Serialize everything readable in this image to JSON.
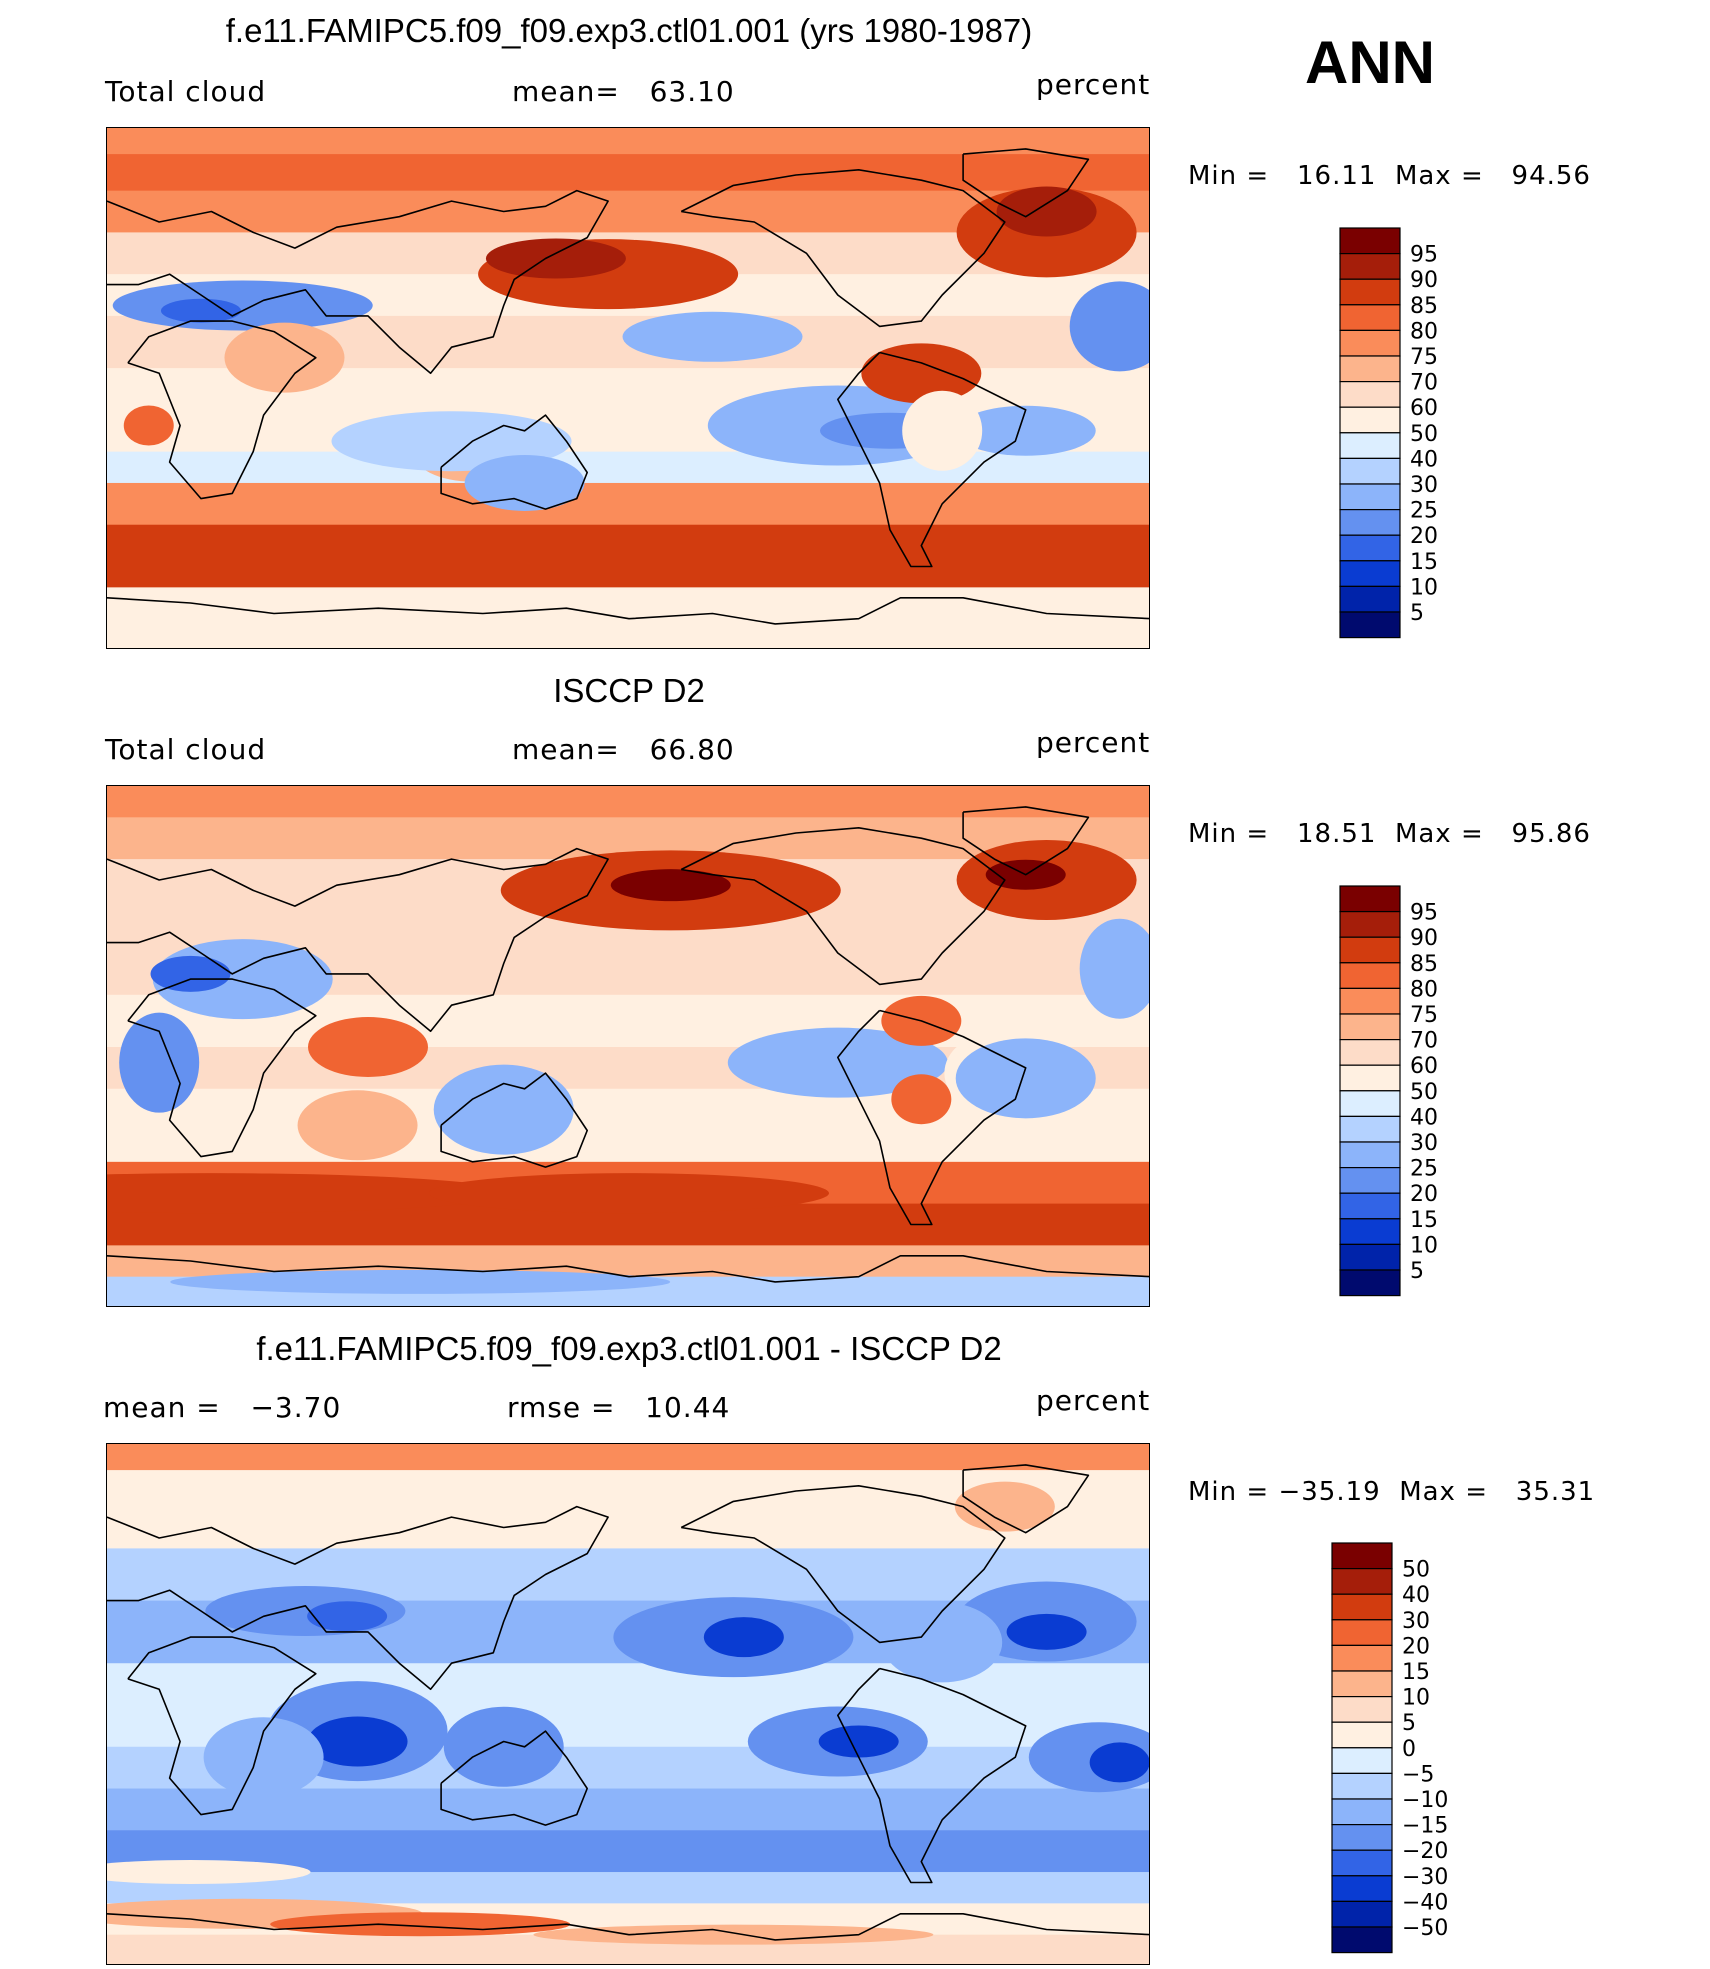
{
  "season_label": "ANN",
  "panels": [
    {
      "title": "f.e11.FAMIPC5.f09_f09.exp3.ctl01.001 (yrs 1980-1987)",
      "left_label": "Total cloud",
      "mean_text": "mean=   63.10",
      "units": "percent",
      "minmax": "Min =   16.11  Max =   94.56",
      "colorbar": {
        "labels": [
          "95",
          "90",
          "85",
          "80",
          "75",
          "70",
          "60",
          "50",
          "40",
          "30",
          "25",
          "20",
          "15",
          "10",
          "5"
        ]
      }
    },
    {
      "title": "ISCCP D2",
      "left_label": "Total cloud",
      "mean_text": "mean=   66.80",
      "units": "percent",
      "minmax": "Min =   18.51  Max =   95.86",
      "colorbar": {
        "labels": [
          "95",
          "90",
          "85",
          "80",
          "75",
          "70",
          "60",
          "50",
          "40",
          "30",
          "25",
          "20",
          "15",
          "10",
          "5"
        ]
      }
    },
    {
      "title": "f.e11.FAMIPC5.f09_f09.exp3.ctl01.001 - ISCCP D2",
      "left_label": "mean =   −3.70",
      "mean_text": "rmse =   10.44",
      "units": "percent",
      "minmax": "Min = −35.19  Max =   35.31",
      "colorbar": {
        "labels": [
          "50",
          "40",
          "30",
          "20",
          "15",
          "10",
          "5",
          "0",
          "−5",
          "−10",
          "−15",
          "−20",
          "−30",
          "−40",
          "−50"
        ]
      }
    }
  ],
  "colors": {
    "scale": [
      "#7a0000",
      "#a51e0a",
      "#d23c0f",
      "#f06432",
      "#fa8c5a",
      "#fcb48c",
      "#fddcc8",
      "#fff0e1",
      "#dceeff",
      "#b4d2ff",
      "#8cb4fa",
      "#6491f0",
      "#3264e6",
      "#0a3cd2",
      "#0023aa",
      "#000a6e"
    ],
    "coast": "#000000"
  },
  "chart_data": [
    {
      "type": "heatmap",
      "title": "f.e11.FAMIPC5.f09_f09.exp3.ctl01.001 (yrs 1980-1987)",
      "variable": "Total cloud",
      "units": "percent",
      "mean": 63.1,
      "min": 16.11,
      "max": 94.56,
      "levels": [
        5,
        10,
        15,
        20,
        25,
        30,
        40,
        50,
        60,
        70,
        75,
        80,
        85,
        90,
        95
      ],
      "domain": {
        "lon": [
          0,
          360
        ],
        "lat": [
          -90,
          90
        ]
      }
    },
    {
      "type": "heatmap",
      "title": "ISCCP D2",
      "variable": "Total cloud",
      "units": "percent",
      "mean": 66.8,
      "min": 18.51,
      "max": 95.86,
      "levels": [
        5,
        10,
        15,
        20,
        25,
        30,
        40,
        50,
        60,
        70,
        75,
        80,
        85,
        90,
        95
      ],
      "domain": {
        "lon": [
          0,
          360
        ],
        "lat": [
          -90,
          90
        ]
      }
    },
    {
      "type": "heatmap",
      "title": "f.e11.FAMIPC5.f09_f09.exp3.ctl01.001 - ISCCP D2",
      "units": "percent",
      "mean": -3.7,
      "rmse": 10.44,
      "min": -35.19,
      "max": 35.31,
      "levels": [
        -50,
        -40,
        -30,
        -20,
        -15,
        -10,
        -5,
        0,
        5,
        10,
        15,
        20,
        30,
        40,
        50
      ],
      "domain": {
        "lon": [
          0,
          360
        ],
        "lat": [
          -90,
          90
        ]
      }
    }
  ]
}
